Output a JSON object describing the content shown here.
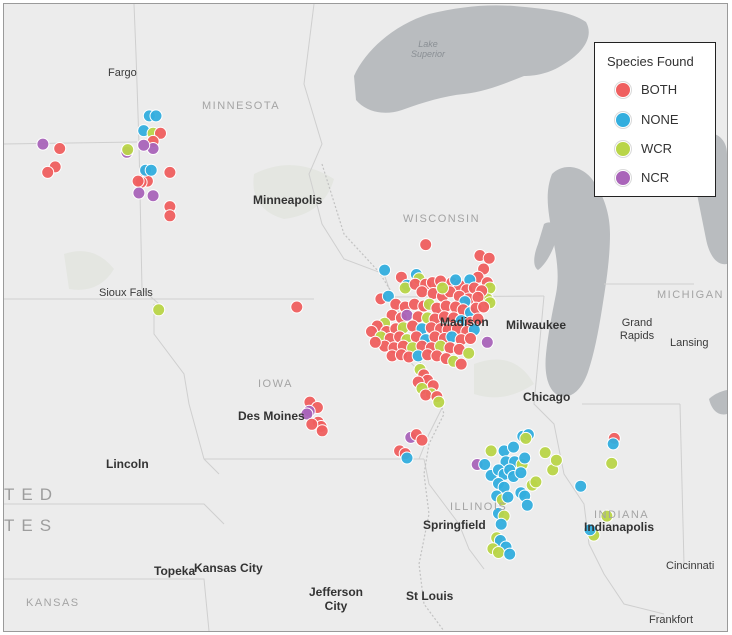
{
  "legend": {
    "title": "Species Found",
    "items": [
      {
        "key": "BOTH",
        "label": "BOTH",
        "color": "#ef5f5f"
      },
      {
        "key": "NONE",
        "label": "NONE",
        "color": "#33aede"
      },
      {
        "key": "WCR",
        "label": "WCR",
        "color": "#b9d548"
      },
      {
        "key": "NCR",
        "label": "NCR",
        "color": "#a964b9"
      }
    ]
  },
  "labels": {
    "fargo": "Fargo",
    "minneapolis": "Minneapolis",
    "sioux_falls": "Sioux Falls",
    "des_moines": "Des Moines",
    "lincoln": "Lincoln",
    "topeka": "Topeka",
    "kansas_city": "Kansas City",
    "jefferson_city": "Jefferson\nCity",
    "st_louis": "St Louis",
    "springfield": "Springfield",
    "chicago": "Chicago",
    "madison": "Madison",
    "milwaukee": "Milwaukee",
    "grand_rapids": "Grand\nRapids",
    "lansing": "Lansing",
    "indianapolis": "Indianapolis",
    "cincinnati": "Cincinnati",
    "frankfort": "Frankfort",
    "minnesota": "MINNESOTA",
    "wisconsin": "WISCONSIN",
    "iowa": "IOWA",
    "illinois": "ILLINOIS",
    "indiana": "INDIANA",
    "michigan": "MICHIGAN",
    "kansas": "KANSAS",
    "country_top": "TED",
    "country_bottom": "TES",
    "lake_superior": "Lake\nSuperior"
  },
  "points": [
    {
      "species": "BOTH",
      "lon": -99.3,
      "lat": 46.32
    },
    {
      "species": "BOTH",
      "lon": -99.42,
      "lat": 45.98
    },
    {
      "species": "BOTH",
      "lon": -99.62,
      "lat": 45.88
    },
    {
      "species": "NCR",
      "lon": -99.75,
      "lat": 46.4
    },
    {
      "species": "NONE",
      "lon": -96.9,
      "lat": 46.92
    },
    {
      "species": "NONE",
      "lon": -96.72,
      "lat": 46.92
    },
    {
      "species": "NONE",
      "lon": -97.05,
      "lat": 46.65
    },
    {
      "species": "WCR",
      "lon": -96.8,
      "lat": 46.6
    },
    {
      "species": "BOTH",
      "lon": -96.6,
      "lat": 46.6
    },
    {
      "species": "BOTH",
      "lon": -96.8,
      "lat": 46.45
    },
    {
      "species": "NCR",
      "lon": -96.8,
      "lat": 46.32
    },
    {
      "species": "NCR",
      "lon": -97.05,
      "lat": 46.38
    },
    {
      "species": "NCR",
      "lon": -97.5,
      "lat": 46.25
    },
    {
      "species": "WCR",
      "lon": -97.48,
      "lat": 46.3
    },
    {
      "species": "BOTH",
      "lon": -97.0,
      "lat": 45.88
    },
    {
      "species": "BOTH",
      "lon": -96.95,
      "lat": 45.72
    },
    {
      "species": "BOTH",
      "lon": -97.12,
      "lat": 45.7
    },
    {
      "species": "NONE",
      "lon": -97.0,
      "lat": 45.92
    },
    {
      "species": "NONE",
      "lon": -96.85,
      "lat": 45.92
    },
    {
      "species": "BOTH",
      "lon": -96.35,
      "lat": 45.88
    },
    {
      "species": "NCR",
      "lon": -96.8,
      "lat": 45.45
    },
    {
      "species": "NCR",
      "lon": -97.18,
      "lat": 45.5
    },
    {
      "species": "BOTH",
      "lon": -96.35,
      "lat": 45.25
    },
    {
      "species": "BOTH",
      "lon": -96.35,
      "lat": 45.08
    },
    {
      "species": "BOTH",
      "lon": -97.2,
      "lat": 45.72
    },
    {
      "species": "WCR",
      "lon": -96.65,
      "lat": 43.35
    },
    {
      "species": "BOTH",
      "lon": -92.95,
      "lat": 43.4
    },
    {
      "species": "BOTH",
      "lon": -92.6,
      "lat": 41.65
    },
    {
      "species": "BOTH",
      "lon": -92.4,
      "lat": 41.55
    },
    {
      "species": "NCR",
      "lon": -92.62,
      "lat": 41.48
    },
    {
      "species": "NCR",
      "lon": -92.68,
      "lat": 41.43
    },
    {
      "species": "BOTH",
      "lon": -92.38,
      "lat": 41.28
    },
    {
      "species": "BOTH",
      "lon": -92.3,
      "lat": 41.2
    },
    {
      "species": "BOTH",
      "lon": -92.55,
      "lat": 41.24
    },
    {
      "species": "BOTH",
      "lon": -92.27,
      "lat": 41.12
    },
    {
      "species": "BOTH",
      "lon": -89.5,
      "lat": 44.55
    },
    {
      "species": "BOTH",
      "lon": -88.05,
      "lat": 44.35
    },
    {
      "species": "BOTH",
      "lon": -87.8,
      "lat": 44.3
    },
    {
      "species": "BOTH",
      "lon": -87.95,
      "lat": 44.1
    },
    {
      "species": "BOTH",
      "lon": -88.1,
      "lat": 43.95
    },
    {
      "species": "BOTH",
      "lon": -87.85,
      "lat": 43.85
    },
    {
      "species": "WCR",
      "lon": -87.78,
      "lat": 43.75
    },
    {
      "species": "WCR",
      "lon": -87.85,
      "lat": 43.55
    },
    {
      "species": "WCR",
      "lon": -87.78,
      "lat": 43.48
    },
    {
      "species": "NONE",
      "lon": -88.32,
      "lat": 43.9
    },
    {
      "species": "NONE",
      "lon": -90.6,
      "lat": 44.08
    },
    {
      "species": "BOTH",
      "lon": -90.15,
      "lat": 43.95
    },
    {
      "species": "NONE",
      "lon": -89.75,
      "lat": 44.0
    },
    {
      "species": "WCR",
      "lon": -89.68,
      "lat": 43.92
    },
    {
      "species": "NONE",
      "lon": -90.0,
      "lat": 43.8
    },
    {
      "species": "WCR",
      "lon": -90.05,
      "lat": 43.75
    },
    {
      "species": "BOTH",
      "lon": -89.78,
      "lat": 43.82
    },
    {
      "species": "BOTH",
      "lon": -89.5,
      "lat": 43.82
    },
    {
      "species": "BOTH",
      "lon": -89.32,
      "lat": 43.85
    },
    {
      "species": "BOTH",
      "lon": -89.1,
      "lat": 43.88
    },
    {
      "species": "BOTH",
      "lon": -88.8,
      "lat": 43.85
    },
    {
      "species": "BOTH",
      "lon": -88.6,
      "lat": 43.8
    },
    {
      "species": "BOTH",
      "lon": -88.4,
      "lat": 43.72
    },
    {
      "species": "BOTH",
      "lon": -88.2,
      "lat": 43.75
    },
    {
      "species": "BOTH",
      "lon": -88.0,
      "lat": 43.7
    },
    {
      "species": "BOTH",
      "lon": -89.6,
      "lat": 43.68
    },
    {
      "species": "BOTH",
      "lon": -89.3,
      "lat": 43.65
    },
    {
      "species": "BOTH",
      "lon": -89.05,
      "lat": 43.6
    },
    {
      "species": "BOTH",
      "lon": -88.85,
      "lat": 43.68
    },
    {
      "species": "BOTH",
      "lon": -88.6,
      "lat": 43.6
    },
    {
      "species": "BOTH",
      "lon": -88.35,
      "lat": 43.55
    },
    {
      "species": "BOTH",
      "lon": -88.1,
      "lat": 43.58
    },
    {
      "species": "NONE",
      "lon": -88.7,
      "lat": 43.9
    },
    {
      "species": "WCR",
      "lon": -89.05,
      "lat": 43.75
    },
    {
      "species": "NONE",
      "lon": -88.45,
      "lat": 43.5
    },
    {
      "species": "BOTH",
      "lon": -90.7,
      "lat": 43.55
    },
    {
      "species": "NONE",
      "lon": -90.5,
      "lat": 43.6
    },
    {
      "species": "BOTH",
      "lon": -90.3,
      "lat": 43.45
    },
    {
      "species": "BOTH",
      "lon": -90.05,
      "lat": 43.4
    },
    {
      "species": "BOTH",
      "lon": -89.8,
      "lat": 43.45
    },
    {
      "species": "BOTH",
      "lon": -89.55,
      "lat": 43.42
    },
    {
      "species": "WCR",
      "lon": -89.4,
      "lat": 43.45
    },
    {
      "species": "BOTH",
      "lon": -89.2,
      "lat": 43.38
    },
    {
      "species": "BOTH",
      "lon": -88.95,
      "lat": 43.42
    },
    {
      "species": "BOTH",
      "lon": -88.7,
      "lat": 43.4
    },
    {
      "species": "BOTH",
      "lon": -88.5,
      "lat": 43.35
    },
    {
      "species": "NONE",
      "lon": -88.3,
      "lat": 43.3
    },
    {
      "species": "BOTH",
      "lon": -88.15,
      "lat": 43.38
    },
    {
      "species": "BOTH",
      "lon": -87.95,
      "lat": 43.4
    },
    {
      "species": "BOTH",
      "lon": -90.4,
      "lat": 43.25
    },
    {
      "species": "BOTH",
      "lon": -90.15,
      "lat": 43.2
    },
    {
      "species": "NCR",
      "lon": -90.0,
      "lat": 43.25
    },
    {
      "species": "BOTH",
      "lon": -89.7,
      "lat": 43.22
    },
    {
      "species": "WCR",
      "lon": -89.45,
      "lat": 43.2
    },
    {
      "species": "BOTH",
      "lon": -89.25,
      "lat": 43.18
    },
    {
      "species": "BOTH",
      "lon": -89.0,
      "lat": 43.22
    },
    {
      "species": "BOTH",
      "lon": -88.75,
      "lat": 43.2
    },
    {
      "species": "NONE",
      "lon": -88.55,
      "lat": 43.15
    },
    {
      "species": "BOTH",
      "lon": -88.3,
      "lat": 43.12
    },
    {
      "species": "BOTH",
      "lon": -88.1,
      "lat": 43.18
    },
    {
      "species": "WCR",
      "lon": -90.6,
      "lat": 43.1
    },
    {
      "species": "BOTH",
      "lon": -90.8,
      "lat": 43.05
    },
    {
      "species": "BOTH",
      "lon": -90.95,
      "lat": 42.95
    },
    {
      "species": "BOTH",
      "lon": -90.55,
      "lat": 42.95
    },
    {
      "species": "BOTH",
      "lon": -90.3,
      "lat": 43.0
    },
    {
      "species": "WCR",
      "lon": -90.1,
      "lat": 43.02
    },
    {
      "species": "BOTH",
      "lon": -89.85,
      "lat": 43.05
    },
    {
      "species": "NONE",
      "lon": -89.6,
      "lat": 43.0
    },
    {
      "species": "BOTH",
      "lon": -89.35,
      "lat": 43.02
    },
    {
      "species": "BOTH",
      "lon": -89.1,
      "lat": 43.0
    },
    {
      "species": "BOTH",
      "lon": -88.9,
      "lat": 42.98
    },
    {
      "species": "BOTH",
      "lon": -88.65,
      "lat": 43.0
    },
    {
      "species": "BOTH",
      "lon": -88.4,
      "lat": 42.95
    },
    {
      "species": "NONE",
      "lon": -88.2,
      "lat": 42.98
    },
    {
      "species": "WCR",
      "lon": -90.7,
      "lat": 42.85
    },
    {
      "species": "BOTH",
      "lon": -90.45,
      "lat": 42.82
    },
    {
      "species": "BOTH",
      "lon": -90.2,
      "lat": 42.85
    },
    {
      "species": "WCR",
      "lon": -90.0,
      "lat": 42.8
    },
    {
      "species": "BOTH",
      "lon": -89.75,
      "lat": 42.85
    },
    {
      "species": "NONE",
      "lon": -89.5,
      "lat": 42.8
    },
    {
      "species": "BOTH",
      "lon": -89.25,
      "lat": 42.85
    },
    {
      "species": "BOTH",
      "lon": -89.0,
      "lat": 42.82
    },
    {
      "species": "NONE",
      "lon": -88.8,
      "lat": 42.85
    },
    {
      "species": "BOTH",
      "lon": -88.55,
      "lat": 42.8
    },
    {
      "species": "BOTH",
      "lon": -88.3,
      "lat": 42.82
    },
    {
      "species": "BOTH",
      "lon": -90.6,
      "lat": 42.68
    },
    {
      "species": "BOTH",
      "lon": -90.35,
      "lat": 42.65
    },
    {
      "species": "BOTH",
      "lon": -90.1,
      "lat": 42.68
    },
    {
      "species": "WCR",
      "lon": -89.85,
      "lat": 42.65
    },
    {
      "species": "BOTH",
      "lon": -89.6,
      "lat": 42.68
    },
    {
      "species": "BOTH",
      "lon": -89.35,
      "lat": 42.65
    },
    {
      "species": "WCR",
      "lon": -89.1,
      "lat": 42.68
    },
    {
      "species": "BOTH",
      "lon": -88.85,
      "lat": 42.65
    },
    {
      "species": "BOTH",
      "lon": -88.6,
      "lat": 42.62
    },
    {
      "species": "WCR",
      "lon": -88.35,
      "lat": 42.55
    },
    {
      "species": "NCR",
      "lon": -87.85,
      "lat": 42.75
    },
    {
      "species": "BOTH",
      "lon": -90.85,
      "lat": 42.75
    },
    {
      "species": "BOTH",
      "lon": -90.4,
      "lat": 42.5
    },
    {
      "species": "BOTH",
      "lon": -90.15,
      "lat": 42.52
    },
    {
      "species": "BOTH",
      "lon": -89.95,
      "lat": 42.48
    },
    {
      "species": "NONE",
      "lon": -89.7,
      "lat": 42.5
    },
    {
      "species": "BOTH",
      "lon": -89.45,
      "lat": 42.52
    },
    {
      "species": "BOTH",
      "lon": -89.2,
      "lat": 42.5
    },
    {
      "species": "BOTH",
      "lon": -88.95,
      "lat": 42.45
    },
    {
      "species": "WCR",
      "lon": -88.75,
      "lat": 42.4
    },
    {
      "species": "BOTH",
      "lon": -88.55,
      "lat": 42.35
    },
    {
      "species": "WCR",
      "lon": -89.65,
      "lat": 42.25
    },
    {
      "species": "BOTH",
      "lon": -89.55,
      "lat": 42.15
    },
    {
      "species": "BOTH",
      "lon": -89.45,
      "lat": 42.05
    },
    {
      "species": "BOTH",
      "lon": -89.7,
      "lat": 42.02
    },
    {
      "species": "BOTH",
      "lon": -89.3,
      "lat": 41.95
    },
    {
      "species": "WCR",
      "lon": -89.6,
      "lat": 41.9
    },
    {
      "species": "WCR",
      "lon": -89.35,
      "lat": 41.8
    },
    {
      "species": "BOTH",
      "lon": -89.5,
      "lat": 41.78
    },
    {
      "species": "BOTH",
      "lon": -89.2,
      "lat": 41.75
    },
    {
      "species": "WCR",
      "lon": -89.15,
      "lat": 41.65
    },
    {
      "species": "NCR",
      "lon": -89.9,
      "lat": 41.0
    },
    {
      "species": "BOTH",
      "lon": -89.75,
      "lat": 41.05
    },
    {
      "species": "BOTH",
      "lon": -89.6,
      "lat": 40.95
    },
    {
      "species": "BOTH",
      "lon": -90.2,
      "lat": 40.75
    },
    {
      "species": "BOTH",
      "lon": -90.05,
      "lat": 40.7
    },
    {
      "species": "NONE",
      "lon": -90.0,
      "lat": 40.62
    },
    {
      "species": "NONE",
      "lon": -87.75,
      "lat": 40.3
    },
    {
      "species": "NCR",
      "lon": -88.12,
      "lat": 40.5
    },
    {
      "species": "NONE",
      "lon": -87.92,
      "lat": 40.5
    },
    {
      "species": "WCR",
      "lon": -87.75,
      "lat": 40.75
    },
    {
      "species": "NONE",
      "lon": -87.4,
      "lat": 40.75
    },
    {
      "species": "NONE",
      "lon": -87.15,
      "lat": 40.82
    },
    {
      "species": "NONE",
      "lon": -86.9,
      "lat": 41.02
    },
    {
      "species": "NONE",
      "lon": -86.75,
      "lat": 41.05
    },
    {
      "species": "WCR",
      "lon": -86.82,
      "lat": 40.98
    },
    {
      "species": "NONE",
      "lon": -87.35,
      "lat": 40.55
    },
    {
      "species": "NONE",
      "lon": -87.12,
      "lat": 40.55
    },
    {
      "species": "WCR",
      "lon": -86.92,
      "lat": 40.5
    },
    {
      "species": "NONE",
      "lon": -87.55,
      "lat": 40.4
    },
    {
      "species": "NONE",
      "lon": -87.4,
      "lat": 40.32
    },
    {
      "species": "NONE",
      "lon": -87.25,
      "lat": 40.4
    },
    {
      "species": "NONE",
      "lon": -87.15,
      "lat": 40.28
    },
    {
      "species": "NONE",
      "lon": -86.95,
      "lat": 40.35
    },
    {
      "species": "NONE",
      "lon": -86.85,
      "lat": 40.62
    },
    {
      "species": "WCR",
      "lon": -86.65,
      "lat": 40.12
    },
    {
      "species": "WCR",
      "lon": -86.55,
      "lat": 40.18
    },
    {
      "species": "WCR",
      "lon": -86.3,
      "lat": 40.72
    },
    {
      "species": "WCR",
      "lon": -86.1,
      "lat": 40.4
    },
    {
      "species": "WCR",
      "lon": -86.0,
      "lat": 40.58
    },
    {
      "species": "NONE",
      "lon": -87.55,
      "lat": 40.15
    },
    {
      "species": "NONE",
      "lon": -87.4,
      "lat": 40.08
    },
    {
      "species": "NONE",
      "lon": -87.6,
      "lat": 39.92
    },
    {
      "species": "WCR",
      "lon": -87.45,
      "lat": 39.85
    },
    {
      "species": "NONE",
      "lon": -87.3,
      "lat": 39.9
    },
    {
      "species": "NONE",
      "lon": -86.95,
      "lat": 39.98
    },
    {
      "species": "NONE",
      "lon": -86.85,
      "lat": 39.92
    },
    {
      "species": "NONE",
      "lon": -86.78,
      "lat": 39.75
    },
    {
      "species": "NONE",
      "lon": -85.35,
      "lat": 40.1
    },
    {
      "species": "NONE",
      "lon": -87.55,
      "lat": 39.6
    },
    {
      "species": "WCR",
      "lon": -87.4,
      "lat": 39.55
    },
    {
      "species": "NONE",
      "lon": -87.48,
      "lat": 39.4
    },
    {
      "species": "WCR",
      "lon": -87.6,
      "lat": 39.15
    },
    {
      "species": "NONE",
      "lon": -87.5,
      "lat": 39.1
    },
    {
      "species": "NONE",
      "lon": -87.35,
      "lat": 38.98
    },
    {
      "species": "WCR",
      "lon": -87.7,
      "lat": 38.95
    },
    {
      "species": "WCR",
      "lon": -87.55,
      "lat": 38.88
    },
    {
      "species": "NONE",
      "lon": -87.25,
      "lat": 38.85
    },
    {
      "species": "WCR",
      "lon": -85.0,
      "lat": 39.2
    },
    {
      "species": "NONE",
      "lon": -85.1,
      "lat": 39.3
    },
    {
      "species": "WCR",
      "lon": -84.65,
      "lat": 39.55
    },
    {
      "species": "BOTH",
      "lon": -84.45,
      "lat": 40.98
    },
    {
      "species": "NONE",
      "lon": -84.48,
      "lat": 40.88
    },
    {
      "species": "WCR",
      "lon": -84.52,
      "lat": 40.52
    }
  ]
}
